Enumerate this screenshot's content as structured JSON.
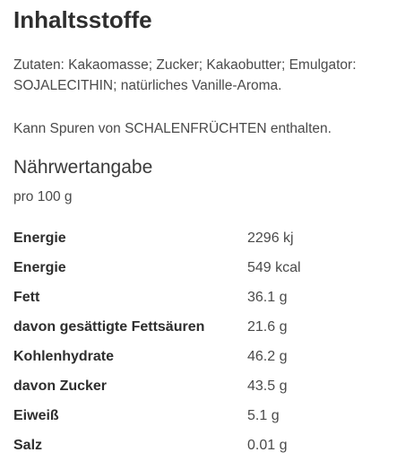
{
  "ingredients_section": {
    "heading": "Inhaltsstoffe",
    "ingredients_text": "Zutaten: Kakaomasse; Zucker; Kakaobutter; Emulgator: SOJALECITHIN; natürliches Vanille-Aroma.",
    "allergen_text": "Kann Spuren von SCHALENFRÜCHTEN enthalten."
  },
  "nutrition": {
    "heading": "Nährwertangabe",
    "per_unit": "pro 100 g",
    "rows": [
      {
        "label": "Energie",
        "value": "2296 kj"
      },
      {
        "label": "Energie",
        "value": "549 kcal"
      },
      {
        "label": "Fett",
        "value": "36.1 g"
      },
      {
        "label": "davon gesättigte Fettsäuren",
        "value": "21.6 g"
      },
      {
        "label": "Kohlenhydrate",
        "value": "46.2 g"
      },
      {
        "label": "davon Zucker",
        "value": "43.5 g"
      },
      {
        "label": "Eiweiß",
        "value": "5.1 g"
      },
      {
        "label": "Salz",
        "value": "0.01 g"
      }
    ]
  }
}
